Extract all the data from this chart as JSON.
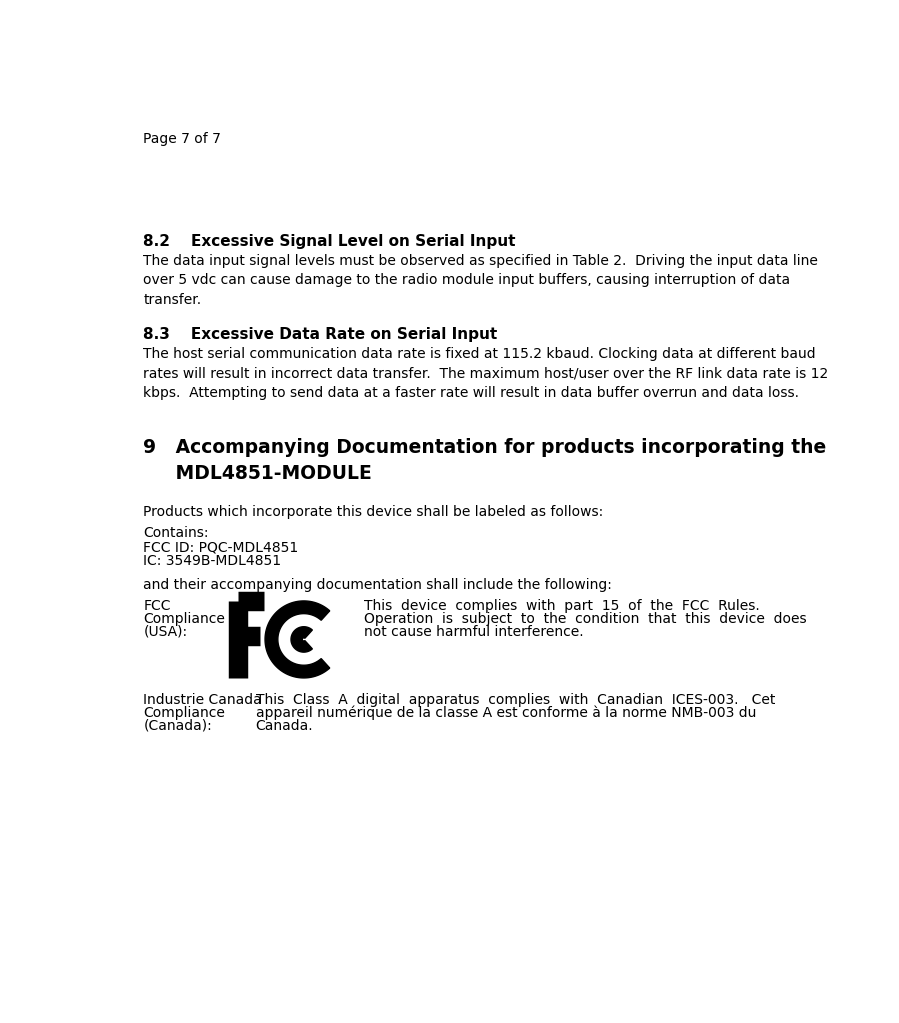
{
  "page_header": "Page 7 of 7",
  "section_82_title": "8.2    Excessive Signal Level on Serial Input",
  "section_83_title": "8.3    Excessive Data Rate on Serial Input",
  "section_9_line1": "9   Accompanying Documentation for products incorporating the",
  "section_9_line2": "     MDL4851-MODULE",
  "section_9_intro": "Products which incorporate this device shall be labeled as follows:",
  "section_9_contains_1": "Contains:",
  "section_9_contains_2": "FCC ID: PQC-MDL4851",
  "section_9_contains_3": "IC: 3549B-MDL4851",
  "section_9_and": "and their accompanying documentation shall include the following:",
  "fcc_label_1": "FCC",
  "fcc_label_2": "Compliance",
  "fcc_label_3": "(USA):",
  "fcc_text_1": "This  device  complies  with  part  15  of  the  FCC  Rules.",
  "fcc_text_2": "Operation  is  subject  to  the  condition  that  this  device  does",
  "fcc_text_3": "not cause harmful interference.",
  "ic_label_1": "Industrie Canada",
  "ic_label_2": "Compliance",
  "ic_label_3": "(Canada):",
  "ic_text_1": "This  Class  A  digital  apparatus  complies  with  Canadian  ICES-003.   Cet",
  "ic_text_2": "appareil numérique de la classe A est conforme à la norme NMB-003 du",
  "ic_text_3": "Canada.",
  "bg_color": "#ffffff",
  "text_color": "#000000",
  "font_size_body": 10.0,
  "font_size_heading": 11.0,
  "font_size_header": 10.0,
  "font_size_section9": 13.5
}
